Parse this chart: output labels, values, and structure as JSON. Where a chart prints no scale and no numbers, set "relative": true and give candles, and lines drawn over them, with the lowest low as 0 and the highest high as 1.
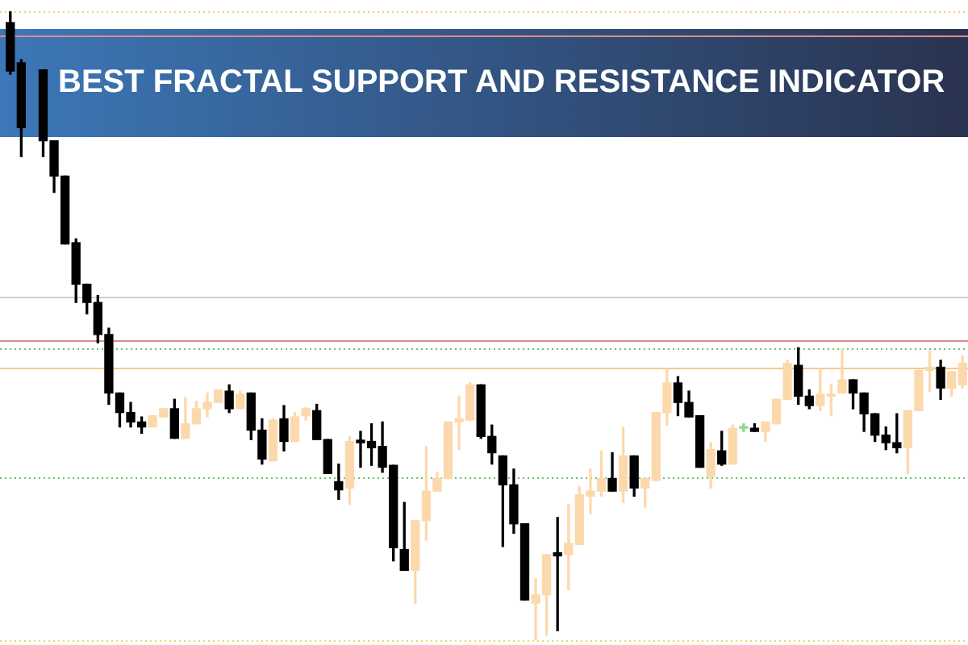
{
  "chart_data": {
    "type": "candlestick",
    "title": "BEST FRACTAL SUPPORT AND RESISTANCE INDICATOR",
    "relative": true,
    "tick_labels": false,
    "legend": false,
    "categories": [
      null,
      null,
      null,
      null,
      null,
      null,
      null,
      null,
      null,
      null,
      null,
      null,
      null,
      null,
      null,
      null,
      null,
      null,
      null,
      null,
      null,
      null,
      null,
      null,
      null,
      null,
      null,
      null,
      null,
      null,
      null,
      null,
      null,
      null,
      null,
      null,
      null,
      null,
      null,
      null,
      null,
      null,
      null,
      null,
      null,
      null,
      null,
      null,
      null,
      null,
      null,
      null,
      null,
      null,
      null,
      null,
      null,
      null,
      null,
      null,
      null,
      null,
      null,
      null,
      null,
      null,
      null,
      null,
      null,
      null,
      null,
      null,
      null,
      null,
      null,
      null,
      null,
      null,
      null,
      null,
      null,
      null,
      null,
      null,
      null,
      null,
      null,
      null
    ],
    "ohlc": [
      [
        0.982,
        1.0,
        0.9,
        0.905
      ],
      [
        0.918,
        0.923,
        0.769,
        0.815
      ],
      null,
      [
        0.907,
        0.907,
        0.769,
        0.794
      ],
      [
        0.794,
        0.794,
        0.712,
        0.738
      ],
      [
        0.738,
        0.738,
        0.63,
        0.63
      ],
      [
        0.632,
        0.638,
        0.537,
        0.566
      ],
      [
        0.566,
        0.566,
        0.519,
        0.537
      ],
      [
        0.537,
        0.548,
        0.473,
        0.486
      ],
      [
        0.486,
        0.496,
        0.375,
        0.393
      ],
      [
        0.393,
        0.393,
        0.339,
        0.362
      ],
      [
        0.362,
        0.378,
        0.339,
        0.347
      ],
      [
        0.347,
        0.355,
        0.329,
        0.339
      ],
      [
        0.339,
        0.357,
        0.339,
        0.357
      ],
      [
        0.355,
        0.368,
        0.355,
        0.368
      ],
      [
        0.368,
        0.383,
        0.321,
        0.321
      ],
      [
        0.321,
        0.386,
        0.321,
        0.344
      ],
      [
        0.344,
        0.38,
        0.344,
        0.368
      ],
      [
        0.368,
        0.393,
        0.355,
        0.378
      ],
      [
        0.378,
        0.398,
        0.378,
        0.398
      ],
      [
        0.396,
        0.406,
        0.362,
        0.368
      ],
      [
        0.368,
        0.396,
        0.368,
        0.391
      ],
      [
        0.393,
        0.393,
        0.319,
        0.334
      ],
      [
        0.334,
        0.352,
        0.28,
        0.288
      ],
      [
        0.285,
        0.352,
        0.285,
        0.35
      ],
      [
        0.352,
        0.373,
        0.301,
        0.316
      ],
      [
        0.316,
        0.362,
        0.316,
        0.355
      ],
      [
        0.357,
        0.37,
        0.35,
        0.368
      ],
      [
        0.365,
        0.375,
        0.319,
        0.319
      ],
      [
        0.319,
        0.319,
        0.265,
        0.265
      ],
      [
        0.252,
        0.28,
        0.224,
        0.239
      ],
      [
        0.242,
        0.324,
        0.216,
        0.316
      ],
      [
        0.318,
        0.332,
        0.275,
        0.314
      ],
      [
        0.316,
        0.344,
        0.278,
        0.306
      ],
      [
        0.308,
        0.347,
        0.267,
        0.275
      ],
      [
        0.278,
        0.278,
        0.126,
        0.147
      ],
      [
        0.144,
        0.219,
        0.111,
        0.111
      ],
      [
        0.111,
        0.19,
        0.059,
        0.19
      ],
      [
        0.19,
        0.308,
        0.159,
        0.237
      ],
      [
        0.237,
        0.267,
        0.237,
        0.257
      ],
      [
        0.257,
        0.347,
        0.257,
        0.347
      ],
      [
        0.347,
        0.388,
        0.303,
        0.352
      ],
      [
        0.35,
        0.409,
        0.35,
        0.406
      ],
      [
        0.406,
        0.406,
        0.321,
        0.324
      ],
      [
        0.324,
        0.342,
        0.28,
        0.298
      ],
      [
        0.293,
        0.293,
        0.149,
        0.247
      ],
      [
        0.247,
        0.272,
        0.17,
        0.185
      ],
      [
        0.185,
        0.185,
        0.064,
        0.064
      ],
      [
        0.059,
        0.098,
        0.0,
        0.072
      ],
      [
        0.072,
        0.136,
        0.008,
        0.136
      ],
      [
        0.139,
        0.195,
        0.015,
        0.134
      ],
      [
        0.136,
        0.216,
        0.08,
        0.154
      ],
      [
        0.152,
        0.244,
        0.152,
        0.231
      ],
      [
        0.229,
        0.272,
        0.201,
        0.237
      ],
      [
        0.237,
        0.301,
        0.229,
        0.257
      ],
      [
        0.257,
        0.298,
        0.237,
        0.237
      ],
      [
        0.237,
        0.339,
        0.219,
        0.293
      ],
      [
        0.293,
        0.293,
        0.229,
        0.242
      ],
      [
        0.242,
        0.257,
        0.211,
        0.257
      ],
      [
        0.254,
        0.362,
        0.254,
        0.362
      ],
      [
        0.362,
        0.432,
        0.342,
        0.409
      ],
      [
        0.409,
        0.419,
        0.357,
        0.378
      ],
      [
        0.378,
        0.396,
        0.355,
        0.355
      ],
      [
        0.357,
        0.357,
        0.275,
        0.275
      ],
      [
        0.26,
        0.314,
        0.242,
        0.303
      ],
      [
        0.301,
        0.332,
        0.278,
        0.28
      ],
      [
        0.28,
        0.342,
        0.28,
        0.337
      ],
      [
        0.337,
        0.344,
        0.332,
        0.339
      ],
      [
        0.337,
        0.344,
        0.332,
        0.332
      ],
      [
        0.332,
        0.347,
        0.316,
        0.347
      ],
      [
        0.344,
        0.383,
        0.344,
        0.383
      ],
      [
        0.383,
        0.445,
        0.383,
        0.44
      ],
      [
        0.437,
        0.465,
        0.375,
        0.388
      ],
      [
        0.388,
        0.398,
        0.368,
        0.373
      ],
      [
        0.373,
        0.432,
        0.365,
        0.391
      ],
      [
        0.388,
        0.406,
        0.357,
        0.391
      ],
      [
        0.393,
        0.463,
        0.393,
        0.414
      ],
      [
        0.414,
        0.414,
        0.368,
        0.393
      ],
      [
        0.393,
        0.393,
        0.332,
        0.36
      ],
      [
        0.36,
        0.36,
        0.316,
        0.326
      ],
      [
        0.326,
        0.339,
        0.303,
        0.314
      ],
      [
        0.314,
        0.36,
        0.298,
        0.306
      ],
      [
        0.306,
        0.365,
        0.265,
        0.365
      ],
      [
        0.365,
        0.429,
        0.365,
        0.429
      ],
      [
        0.429,
        0.46,
        0.396,
        0.434
      ],
      [
        0.434,
        0.445,
        0.383,
        0.401
      ],
      [
        0.401,
        0.427,
        0.388,
        0.427
      ],
      [
        0.406,
        0.452,
        0.401,
        0.44
      ]
    ],
    "colors": [
      "#000000",
      "#000000",
      null,
      "#000000",
      "#000000",
      "#000000",
      "#000000",
      "#000000",
      "#000000",
      "#000000",
      "#000000",
      "#000000",
      "#000000",
      "#fcd9ac",
      "#fcd9ac",
      "#000000",
      "#fcd9ac",
      "#fcd9ac",
      "#fcd9ac",
      "#fcd9ac",
      "#000000",
      "#fcd9ac",
      "#000000",
      "#000000",
      "#fcd9ac",
      "#000000",
      "#fcd9ac",
      "#fcd9ac",
      "#000000",
      "#000000",
      "#000000",
      "#fcd9ac",
      "#000000",
      "#000000",
      "#000000",
      "#000000",
      "#000000",
      "#fcd9ac",
      "#fcd9ac",
      "#fcd9ac",
      "#fcd9ac",
      "#fcd9ac",
      "#fcd9ac",
      "#000000",
      "#000000",
      "#000000",
      "#000000",
      "#000000",
      "#fcd9ac",
      "#fcd9ac",
      "#000000",
      "#fcd9ac",
      "#fcd9ac",
      "#fcd9ac",
      "#fcd9ac",
      "#000000",
      "#fcd9ac",
      "#000000",
      "#fcd9ac",
      "#fcd9ac",
      "#fcd9ac",
      "#000000",
      "#000000",
      "#000000",
      "#fcd9ac",
      "#000000",
      "#fcd9ac",
      "#8fd88f",
      "#000000",
      "#fcd9ac",
      "#fcd9ac",
      "#fcd9ac",
      "#000000",
      "#000000",
      "#fcd9ac",
      "#fcd9ac",
      "#fcd9ac",
      "#000000",
      "#000000",
      "#000000",
      "#000000",
      "#000000",
      "#fcd9ac",
      "#fcd9ac",
      "#fcd9ac",
      "#000000",
      "#fcd9ac",
      "#fcd9ac"
    ],
    "ref_lines": [
      {
        "axis": "y",
        "value": 1.0,
        "color": "#f3d36b",
        "line_style": "dotted"
      },
      {
        "axis": "y",
        "value": 0.961,
        "color": "#e08a8a",
        "line_style": "solid"
      },
      {
        "axis": "y",
        "value": 0.545,
        "color": "#d0d0d0",
        "line_style": "solid"
      },
      {
        "axis": "y",
        "value": 0.476,
        "color": "#de8a8a",
        "line_style": "solid"
      },
      {
        "axis": "y",
        "value": 0.465,
        "color": "#6cbf6c",
        "line_style": "dotted"
      },
      {
        "axis": "y",
        "value": 0.434,
        "color": "#f4c98e",
        "line_style": "solid"
      },
      {
        "axis": "y",
        "value": 0.26,
        "color": "#6cbf6c",
        "line_style": "dotted"
      },
      {
        "axis": "y",
        "value": 0,
        "color": "#f3d36b",
        "line_style": "dotted"
      }
    ]
  }
}
